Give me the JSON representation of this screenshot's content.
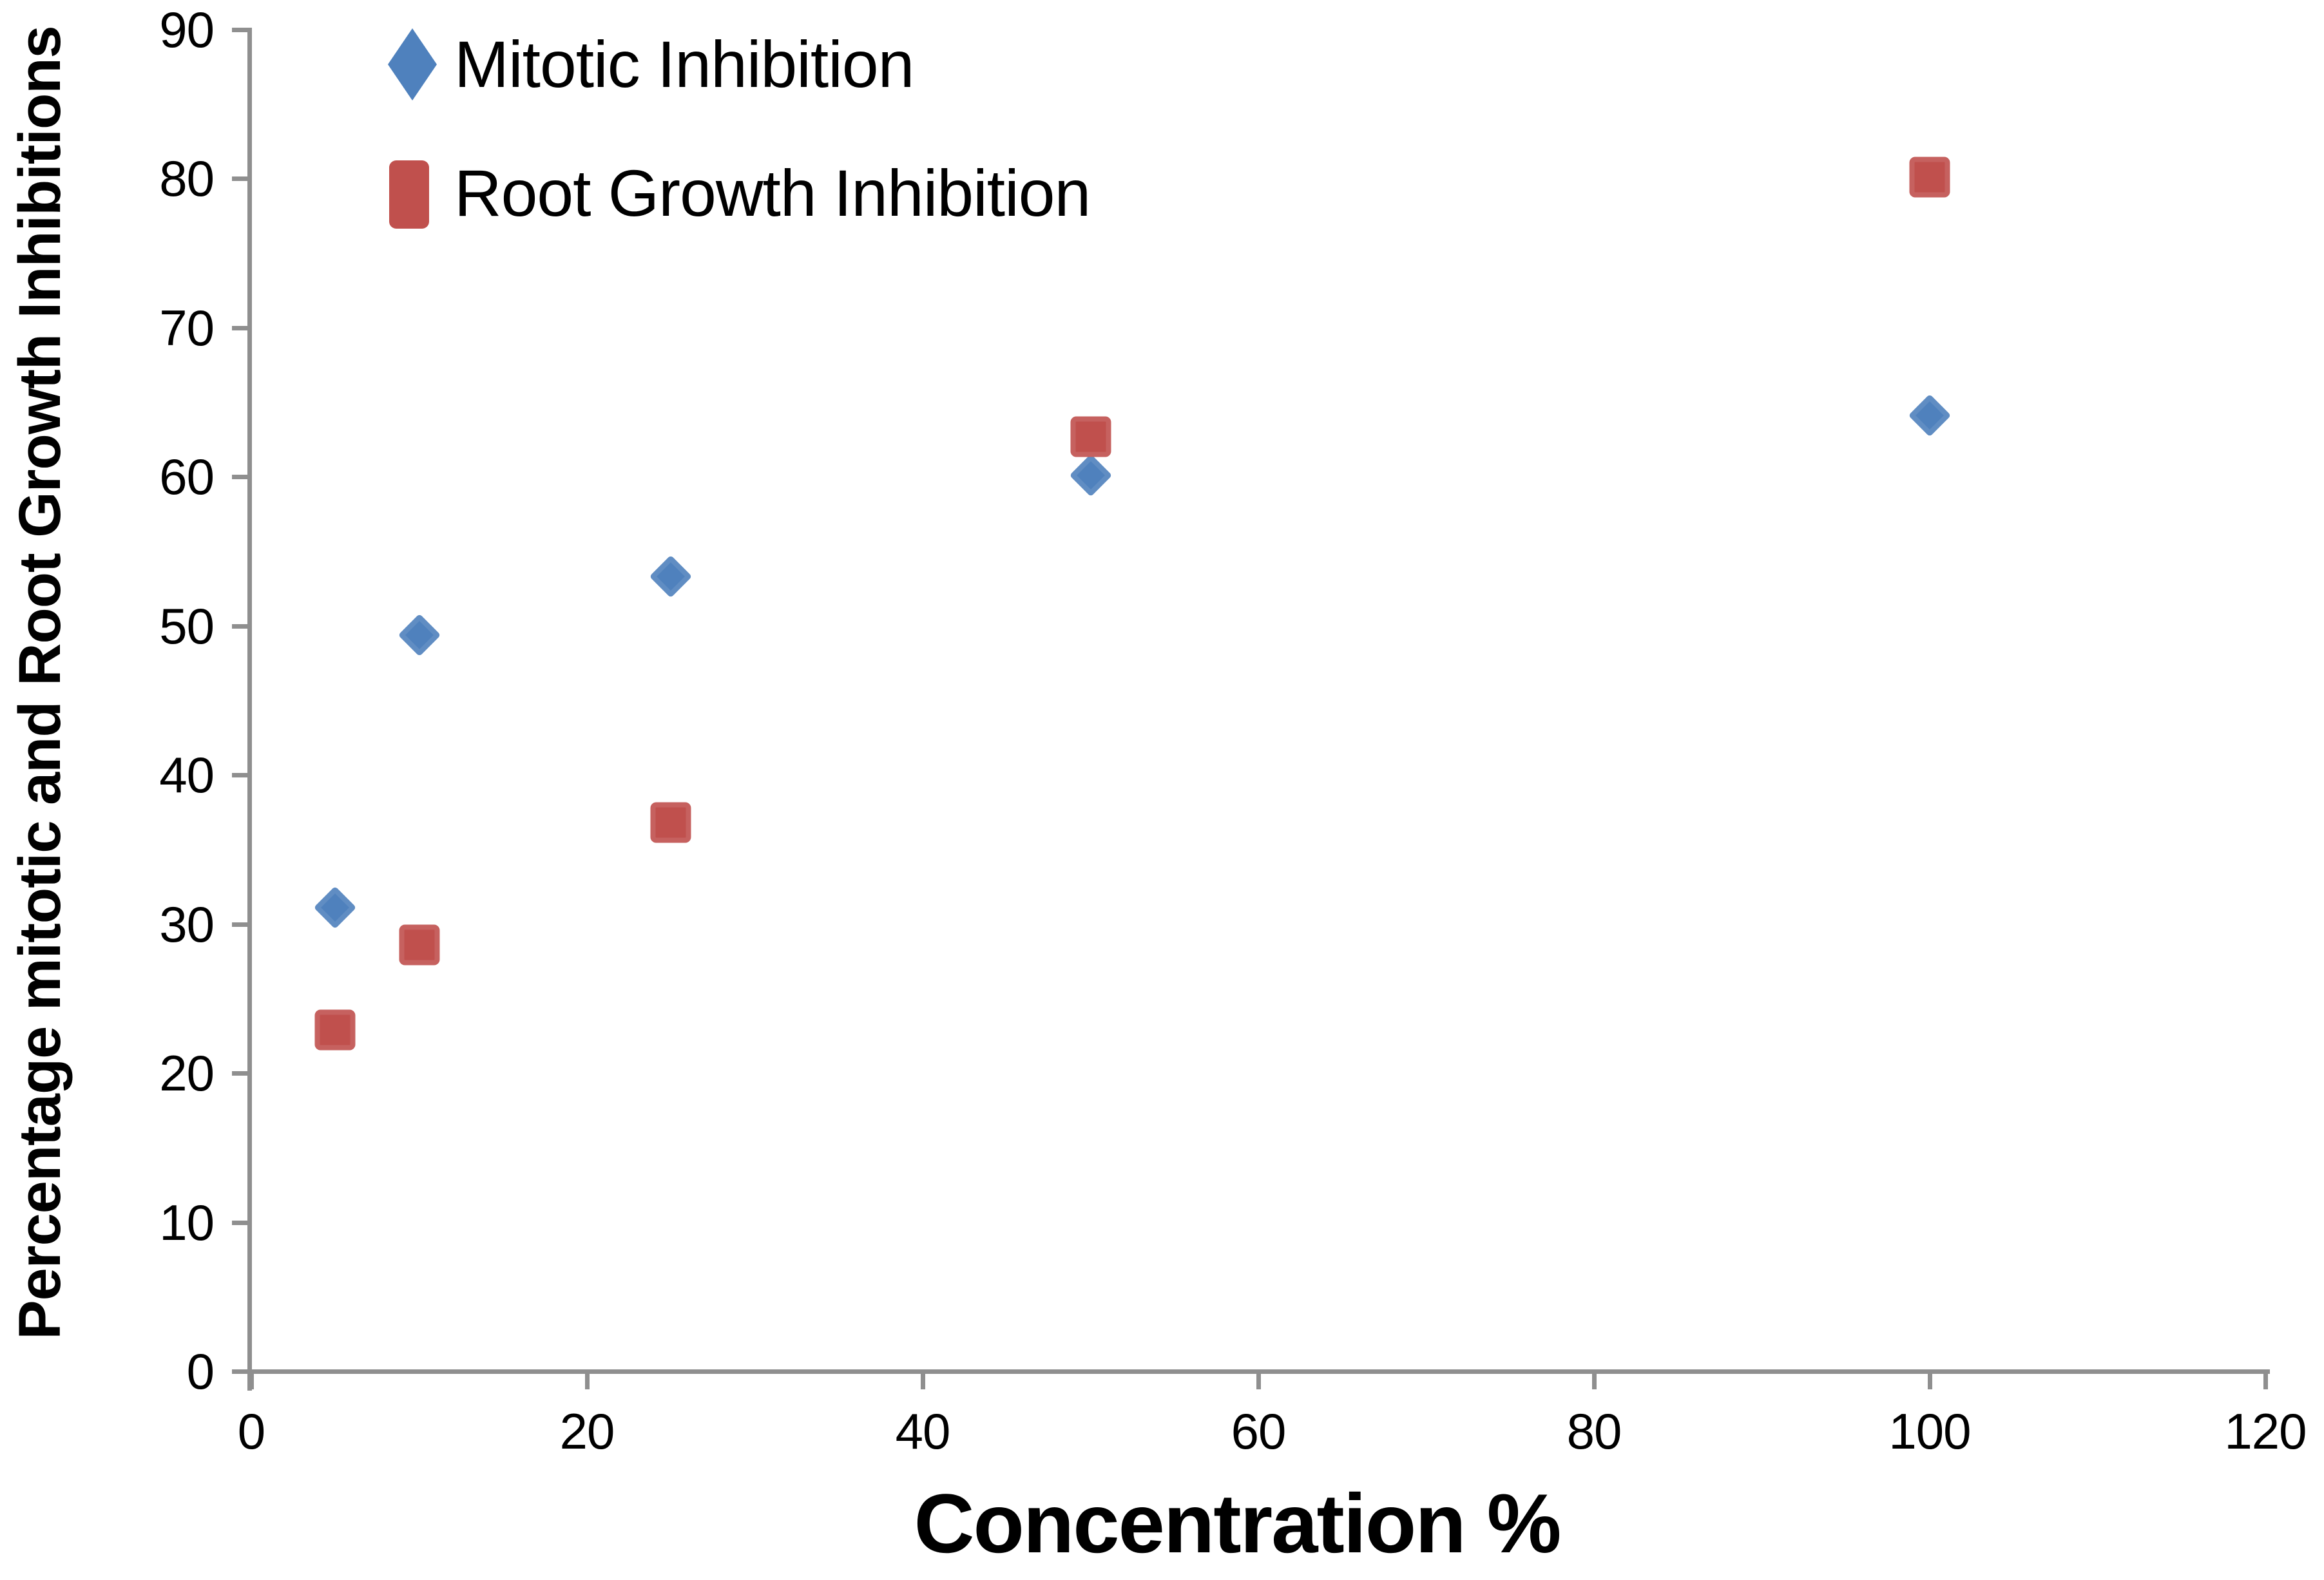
{
  "figure": {
    "background": "#FFFFFF",
    "axis_color": "#8F8F8F",
    "text_color": "#000000"
  },
  "chart_data": {
    "type": "scatter",
    "title": "",
    "xlabel": "Concentration %",
    "ylabel": "Percentage mitotic and Root Growth Inhibitions",
    "xlim": [
      0,
      120
    ],
    "ylim": [
      0,
      90
    ],
    "x_ticks": [
      0,
      20,
      40,
      60,
      80,
      100,
      120
    ],
    "y_ticks": [
      0,
      10,
      20,
      30,
      40,
      50,
      60,
      70,
      80,
      90
    ],
    "grid": false,
    "legend_position": "inside-top-left",
    "series": [
      {
        "name": "Mitotic Inhibition",
        "marker": "diamond",
        "color": "#4F81BD",
        "points": [
          [
            5,
            31.1
          ],
          [
            10,
            49.4
          ],
          [
            25,
            53.3
          ],
          [
            50,
            60.1
          ],
          [
            100,
            64.1
          ]
        ]
      },
      {
        "name": "Root Growth Inhibition",
        "marker": "square",
        "color": "#C0504D",
        "points": [
          [
            5,
            22.9
          ],
          [
            10,
            28.6
          ],
          [
            25,
            36.8
          ],
          [
            50,
            62.7
          ],
          [
            100,
            80.1
          ]
        ]
      }
    ]
  }
}
